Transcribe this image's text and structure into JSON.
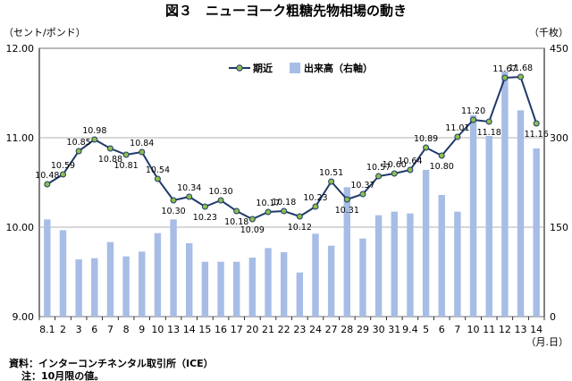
{
  "title": "図３　ニューヨーク粗糖先物相場の動き",
  "notes": {
    "source": "資料：インターコンチネンタル取引所（ICE）",
    "note": "注：10月限の値。"
  },
  "chart_data": {
    "type": "bar+line",
    "title": "図３　ニューヨーク粗糖先物相場の動き",
    "y_left_unit": "（セント/ポンド）",
    "y_right_unit": "（千枚）",
    "x_unit": "（月.日）",
    "y_left_ticks": [
      "9.00",
      "10.00",
      "11.00",
      "12.00"
    ],
    "y_right_ticks": [
      "0",
      "150",
      "300",
      "450"
    ],
    "ylim_left": [
      9,
      12
    ],
    "ylim_right": [
      0,
      450
    ],
    "legend_position": "top-center",
    "categories": [
      "8.1",
      "2",
      "3",
      "6",
      "7",
      "8",
      "9",
      "10",
      "13",
      "14",
      "15",
      "16",
      "17",
      "20",
      "21",
      "22",
      "23",
      "24",
      "27",
      "28",
      "29",
      "30",
      "31",
      "9.4",
      "5",
      "6",
      "7",
      "10",
      "11",
      "12",
      "13",
      "14"
    ],
    "series": [
      {
        "name": "期近",
        "kind": "line",
        "axis": "left",
        "color": "#1f3a6b",
        "marker_color": "#8dbf4a",
        "values": [
          10.48,
          10.59,
          10.85,
          10.98,
          10.88,
          10.81,
          10.84,
          10.54,
          10.3,
          10.34,
          10.23,
          10.3,
          10.18,
          10.09,
          10.17,
          10.18,
          10.12,
          10.23,
          10.51,
          10.31,
          10.37,
          10.57,
          10.6,
          10.64,
          10.89,
          10.8,
          11.01,
          11.2,
          11.18,
          11.67,
          11.68,
          11.16
        ]
      },
      {
        "name": "出来高（右軸）",
        "kind": "bar",
        "axis": "right",
        "color": "#a7bde6",
        "values": [
          163,
          145,
          96,
          98,
          125,
          101,
          109,
          140,
          163,
          123,
          92,
          92,
          92,
          99,
          115,
          108,
          74,
          139,
          119,
          217,
          131,
          170,
          176,
          173,
          246,
          204,
          176,
          338,
          303,
          411,
          346,
          282
        ]
      }
    ]
  }
}
